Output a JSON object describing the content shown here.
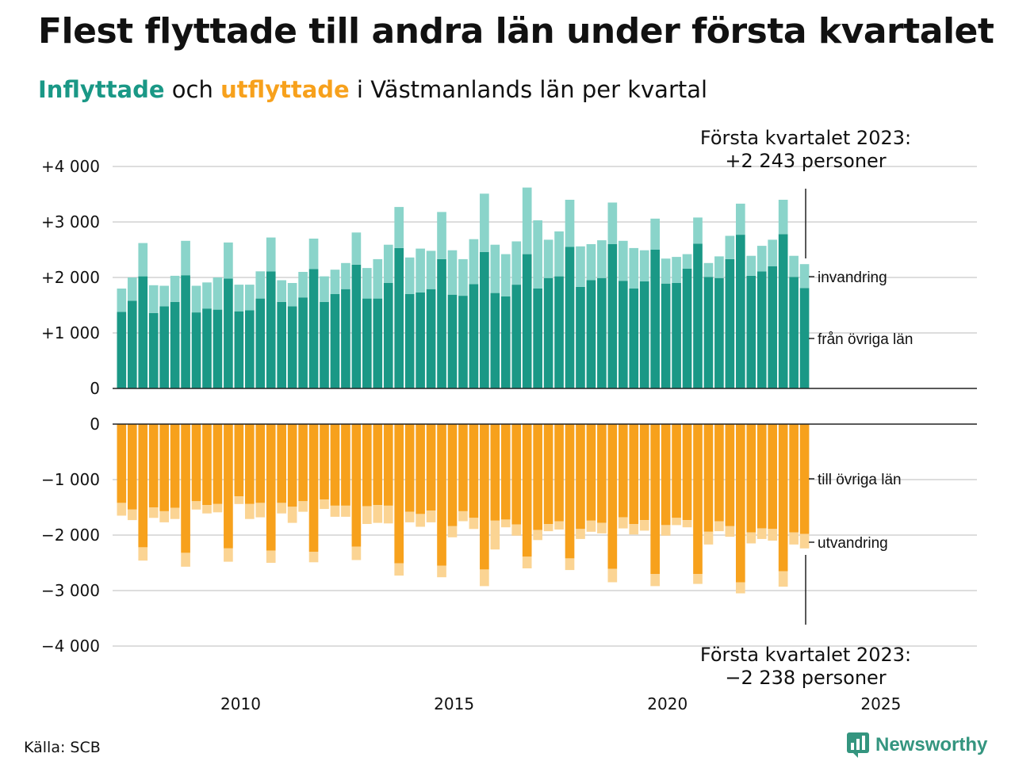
{
  "title": "Flest flyttade till andra län under första kvartalet",
  "subtitle": {
    "part1": "Inflyttade",
    "part2": " och ",
    "part3": "utflyttade",
    "part4": " i Västmanlands län per kvartal"
  },
  "source": "Källa: SCB",
  "logo_text": "Newsworthy",
  "colors": {
    "in_main": "#1a9886",
    "in_light": "#8ad4ca",
    "out_main": "#f7a11c",
    "out_light": "#fbd493",
    "grid": "#dddddd",
    "axis": "#222222",
    "brand": "#34957f"
  },
  "chart_data": {
    "type": "bar",
    "stacked": true,
    "diverging": true,
    "grid": true,
    "x_start": "2007 Q1",
    "x_ticks": [
      "2010",
      "2015",
      "2020",
      "2025"
    ],
    "xlim": [
      2007,
      2027.25
    ],
    "upper": {
      "ylim": [
        0,
        4000
      ],
      "y_ticks": [
        "0",
        "+1 000",
        "+2 000",
        "+3 000",
        "+4 000"
      ],
      "y_tick_values": [
        0,
        1000,
        2000,
        3000,
        4000
      ],
      "series": [
        {
          "name": "från övriga län",
          "values": [
            1380,
            1580,
            2020,
            1360,
            1480,
            1560,
            2040,
            1370,
            1440,
            1420,
            1980,
            1390,
            1410,
            1620,
            2110,
            1560,
            1480,
            1640,
            2150,
            1560,
            1700,
            1790,
            2230,
            1620,
            1620,
            1900,
            2530,
            1700,
            1730,
            1790,
            2330,
            1690,
            1670,
            1880,
            2460,
            1720,
            1660,
            1870,
            2420,
            1800,
            1990,
            2020,
            2550,
            1830,
            1950,
            1990,
            2600,
            1940,
            1800,
            1930,
            2500,
            1890,
            1900,
            2160,
            2610,
            2010,
            1990,
            2330,
            2770,
            2030,
            2110,
            2200,
            2780,
            2010,
            1810
          ]
        },
        {
          "name": "invandring",
          "values": [
            420,
            420,
            600,
            500,
            370,
            470,
            620,
            480,
            470,
            580,
            650,
            480,
            460,
            490,
            610,
            390,
            420,
            460,
            550,
            460,
            440,
            470,
            580,
            550,
            710,
            690,
            740,
            660,
            790,
            690,
            850,
            800,
            660,
            810,
            1050,
            870,
            760,
            780,
            1200,
            1230,
            690,
            810,
            850,
            730,
            650,
            680,
            750,
            720,
            730,
            560,
            560,
            450,
            470,
            260,
            470,
            250,
            390,
            420,
            560,
            360,
            460,
            480,
            620,
            380,
            430
          ]
        }
      ]
    },
    "lower": {
      "ylim": [
        -4000,
        0
      ],
      "y_ticks": [
        "0",
        "−1 000",
        "−2 000",
        "−3 000",
        "−4 000"
      ],
      "y_tick_values": [
        0,
        -1000,
        -2000,
        -3000,
        -4000
      ],
      "series": [
        {
          "name": "till övriga län",
          "values": [
            -1420,
            -1540,
            -2220,
            -1500,
            -1570,
            -1510,
            -2320,
            -1390,
            -1460,
            -1440,
            -2240,
            -1300,
            -1440,
            -1420,
            -2280,
            -1420,
            -1490,
            -1390,
            -2300,
            -1360,
            -1470,
            -1470,
            -2210,
            -1480,
            -1460,
            -1470,
            -2510,
            -1580,
            -1620,
            -1560,
            -2550,
            -1840,
            -1570,
            -1690,
            -2620,
            -1740,
            -1720,
            -1810,
            -2390,
            -1910,
            -1800,
            -1750,
            -2420,
            -1890,
            -1740,
            -1780,
            -2610,
            -1680,
            -1800,
            -1730,
            -2700,
            -1820,
            -1690,
            -1730,
            -2700,
            -1940,
            -1750,
            -1840,
            -2850,
            -1950,
            -1880,
            -1890,
            -2650,
            -1950,
            -1980
          ]
        },
        {
          "name": "utvandring",
          "values": [
            -230,
            -190,
            -240,
            -190,
            -200,
            -200,
            -250,
            -150,
            -150,
            -150,
            -240,
            -140,
            -270,
            -260,
            -220,
            -190,
            -290,
            -190,
            -190,
            -170,
            -200,
            -200,
            -240,
            -320,
            -320,
            -320,
            -220,
            -190,
            -230,
            -210,
            -210,
            -200,
            -180,
            -200,
            -300,
            -520,
            -140,
            -200,
            -210,
            -180,
            -130,
            -150,
            -210,
            -180,
            -200,
            -190,
            -240,
            -200,
            -190,
            -190,
            -220,
            -190,
            -130,
            -130,
            -180,
            -230,
            -180,
            -190,
            -200,
            -200,
            -190,
            -210,
            -280,
            -220,
            -260
          ]
        }
      ]
    },
    "annotations": {
      "top_line1": "Första kvartalet 2023:",
      "top_line2": "+2 243 personer",
      "bottom_line1": "Första kvartalet 2023:",
      "bottom_line2": "−2 238 personer"
    },
    "legend_position": "right of last bar"
  }
}
